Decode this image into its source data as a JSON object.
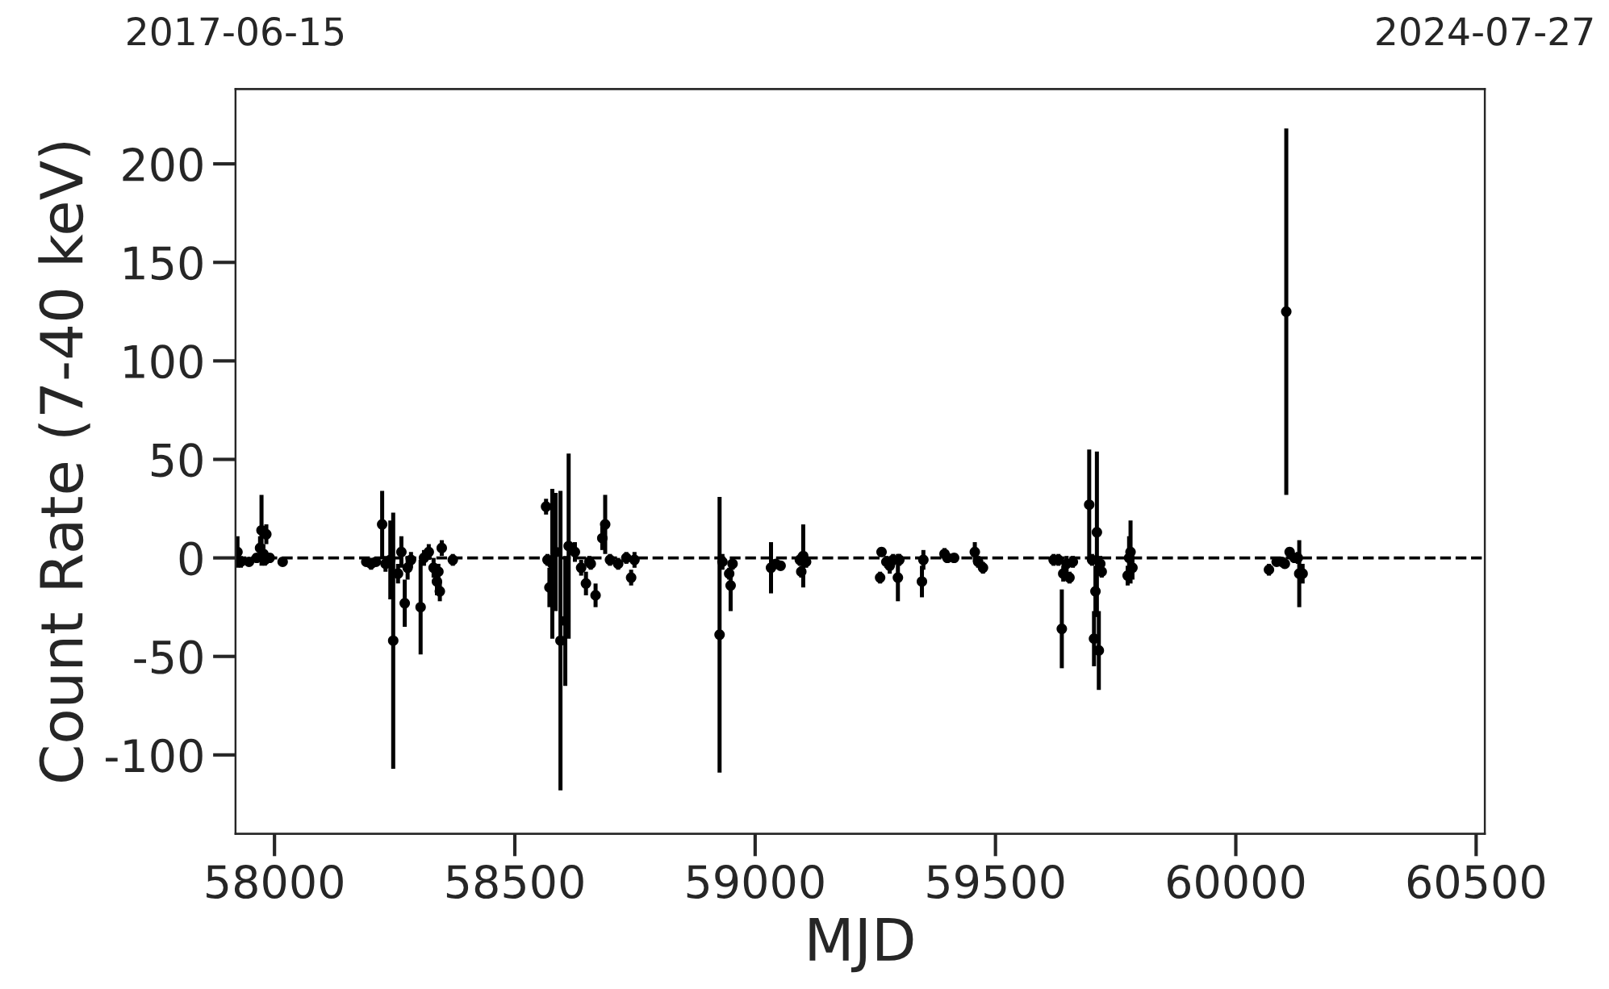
{
  "chart_data": {
    "type": "scatter",
    "xlabel": "MJD",
    "ylabel": "Count Rate (7-40 keV)",
    "xlim": [
      57919,
      60518
    ],
    "xticks": [
      58000,
      58500,
      59000,
      59500,
      60000,
      60500
    ],
    "ylim": [
      -140,
      238
    ],
    "yticks": [
      -100,
      -50,
      0,
      50,
      100,
      150,
      200
    ],
    "x2lim": [
      "2017-06-15",
      "2024-07-27"
    ],
    "x2ticks": [
      "2017-06-15",
      "2024-07-27"
    ],
    "marker": "circle",
    "grid": false,
    "ref_lines": [
      {
        "axis": "y",
        "value": 0,
        "color": "#000000",
        "line_style": "dashed"
      }
    ],
    "series": [
      {
        "color": "#000000",
        "x": [
          57923,
          57930,
          57947,
          57963,
          57970,
          57973,
          57977,
          57980,
          57983,
          57990,
          58017,
          58191,
          58201,
          58211,
          58224,
          58231,
          58241,
          58247,
          58257,
          58264,
          58271,
          58277,
          58284,
          58304,
          58311,
          58321,
          58331,
          58338,
          58341,
          58344,
          58348,
          58371,
          58565,
          58568,
          58572,
          58578,
          58585,
          58595,
          58605,
          58612,
          58625,
          58638,
          58648,
          58655,
          58658,
          58668,
          58682,
          58688,
          58698,
          58715,
          58732,
          58742,
          58749,
          58926,
          58932,
          58946,
          58949,
          58953,
          59033,
          59043,
          59053,
          59093,
          59096,
          59100,
          59106,
          59260,
          59263,
          59273,
          59280,
          59287,
          59297,
          59300,
          59347,
          59350,
          59394,
          59400,
          59414,
          59457,
          59464,
          59474,
          59621,
          59631,
          59638,
          59641,
          59648,
          59654,
          59661,
          59695,
          59701,
          59705,
          59708,
          59711,
          59715,
          59718,
          59721,
          59775,
          59778,
          59781,
          59785,
          60069,
          60085,
          60096,
          60102,
          60105,
          60112,
          60122,
          60129,
          60132,
          60139
        ],
        "values": [
          3,
          -2,
          -2,
          0,
          5,
          14,
          2,
          -1,
          12,
          0,
          -2,
          -2,
          -3,
          -2,
          17,
          -3,
          -1,
          -42,
          -8,
          3,
          -23,
          -5,
          -1,
          -25,
          0,
          3,
          -5,
          -12,
          -7,
          -17,
          5,
          -1,
          26,
          -1,
          -15,
          -3,
          3,
          -42,
          -32,
          6,
          3,
          -5,
          -13,
          -2,
          -3,
          -19,
          10,
          17,
          -1,
          -3,
          0,
          -10,
          -1,
          -39,
          -2,
          -8,
          -14,
          -3,
          -5,
          -3,
          -4,
          -1,
          -7,
          1,
          -2,
          -10,
          3,
          -2,
          -4,
          -1,
          -10,
          -1,
          -12,
          -1,
          2,
          0,
          0,
          3,
          -2,
          -5,
          -1,
          -1,
          -36,
          -8,
          -3,
          -10,
          -2,
          27,
          -1,
          -41,
          -17,
          13,
          -47,
          -3,
          -7,
          -9,
          0,
          3,
          -5,
          -6,
          -2,
          -2,
          -3,
          125,
          3,
          0,
          0,
          -8,
          -8
        ],
        "errors": [
          8,
          3,
          2,
          2,
          6,
          18,
          5,
          3,
          5,
          2,
          1.5,
          2,
          3,
          2,
          17,
          4,
          20,
          65,
          5,
          8,
          12,
          6,
          4,
          24,
          4,
          4,
          5,
          7,
          4,
          5,
          4,
          3,
          4,
          3,
          10,
          38,
          30,
          76,
          33,
          47,
          5,
          4,
          6,
          3,
          3,
          6,
          6,
          15,
          3,
          3,
          3,
          4,
          4,
          70,
          4,
          3,
          13,
          3,
          13,
          2,
          2,
          3,
          3,
          16,
          3,
          3,
          2,
          3,
          4,
          3,
          12,
          3,
          8,
          5,
          3,
          2,
          2,
          5,
          3,
          3,
          3,
          3,
          20,
          4,
          4,
          3,
          3,
          28,
          3,
          14,
          13,
          41,
          20,
          4,
          3,
          5,
          11,
          16,
          6,
          3,
          2,
          2,
          2,
          93,
          2,
          2,
          3,
          17,
          5
        ]
      }
    ]
  }
}
